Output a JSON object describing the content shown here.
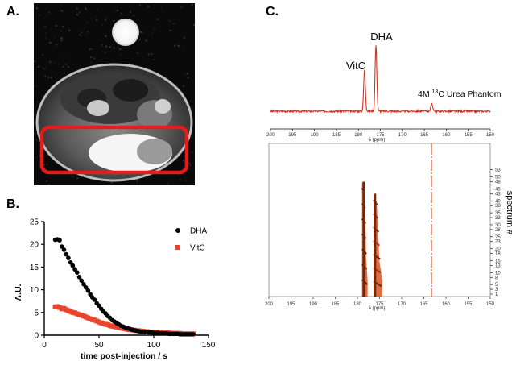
{
  "panels": {
    "a": {
      "label": "A."
    },
    "b": {
      "label": "B."
    },
    "c": {
      "label": "C."
    }
  },
  "mri": {
    "roi_color": "#e81a1a"
  },
  "chart_data": [
    {
      "type": "scatter",
      "panel": "B.",
      "xlabel": "time post-injection / s",
      "ylabel": "A.U.",
      "xlim": [
        0,
        150
      ],
      "ylim": [
        0,
        25
      ],
      "xticks": [
        "0",
        "50",
        "100",
        "150"
      ],
      "yticks": [
        "0",
        "5",
        "10",
        "15",
        "20",
        "25"
      ],
      "legend_position": "top-right",
      "series": [
        {
          "name": "DHA",
          "marker": "circle",
          "color": "#000000",
          "x": [
            10,
            12,
            14,
            16,
            18,
            20,
            22,
            24,
            26,
            28,
            30,
            32,
            34,
            36,
            38,
            40,
            42,
            44,
            46,
            48,
            50,
            52,
            54,
            56,
            58,
            60,
            62,
            64,
            66,
            68,
            70,
            72,
            74,
            76,
            78,
            80,
            82,
            84,
            86,
            88,
            90,
            92,
            94,
            96,
            98,
            100,
            102,
            104,
            106,
            108,
            110,
            112,
            114,
            116,
            118,
            120,
            122,
            124,
            126,
            128,
            130,
            132,
            134,
            136
          ],
          "y": [
            21.0,
            21.1,
            20.9,
            19.5,
            18.8,
            17.8,
            17.0,
            16.0,
            15.3,
            14.5,
            13.8,
            12.8,
            12.0,
            11.2,
            10.5,
            9.8,
            9.0,
            8.3,
            7.8,
            7.0,
            6.5,
            5.8,
            5.2,
            4.8,
            4.2,
            3.8,
            3.3,
            3.0,
            2.7,
            2.4,
            2.1,
            1.9,
            1.7,
            1.5,
            1.4,
            1.2,
            1.1,
            1.0,
            0.9,
            0.8,
            0.8,
            0.7,
            0.7,
            0.6,
            0.6,
            0.5,
            0.5,
            0.5,
            0.4,
            0.4,
            0.4,
            0.4,
            0.3,
            0.3,
            0.3,
            0.3,
            0.3,
            0.2,
            0.2,
            0.2,
            0.2,
            0.2,
            0.2,
            0.2
          ]
        },
        {
          "name": "VitC",
          "marker": "square",
          "color": "#e8452c",
          "x": [
            10,
            12,
            14,
            16,
            18,
            20,
            22,
            24,
            26,
            28,
            30,
            32,
            34,
            36,
            38,
            40,
            42,
            44,
            46,
            48,
            50,
            52,
            54,
            56,
            58,
            60,
            62,
            64,
            66,
            68,
            70,
            72,
            74,
            76,
            78,
            80,
            82,
            84,
            86,
            88,
            90,
            92,
            94,
            96,
            98,
            100,
            102,
            104,
            106,
            108,
            110,
            112,
            114,
            116,
            118,
            120,
            122,
            124,
            126,
            128,
            130,
            132,
            134,
            136
          ],
          "y": [
            6.2,
            6.3,
            6.1,
            5.8,
            5.9,
            5.6,
            5.4,
            5.2,
            5.0,
            4.9,
            4.7,
            4.5,
            4.4,
            4.2,
            4.0,
            3.8,
            3.6,
            3.4,
            3.3,
            3.1,
            2.9,
            2.7,
            2.6,
            2.4,
            2.3,
            2.1,
            2.0,
            1.9,
            1.8,
            1.7,
            1.6,
            1.5,
            1.4,
            1.3,
            1.2,
            1.2,
            1.1,
            1.0,
            1.0,
            0.9,
            0.9,
            0.8,
            0.8,
            0.7,
            0.7,
            0.7,
            0.6,
            0.6,
            0.6,
            0.5,
            0.5,
            0.5,
            0.5,
            0.4,
            0.4,
            0.4,
            0.4,
            0.4,
            0.3,
            0.3,
            0.3,
            0.3,
            0.3,
            0.3
          ]
        }
      ]
    },
    {
      "type": "line",
      "panel": "C.",
      "role": "summed-spectrum",
      "xlabel": "δ (ppm)",
      "x_reversed": true,
      "xlim": [
        200,
        150
      ],
      "xticks": [
        "200",
        "195",
        "190",
        "185",
        "180",
        "175",
        "170",
        "165",
        "160",
        "155",
        "150"
      ],
      "color": "#d2321e",
      "annotations": [
        {
          "text": "DHA",
          "x_ppm": 176.0
        },
        {
          "text": "VitC",
          "x_ppm": 178.6
        },
        {
          "text_prefix": "4M ",
          "superscript": "13",
          "text_suffix": "C Urea Phantom",
          "x_ppm": 163.3
        }
      ],
      "peaks": [
        {
          "name": "VitC",
          "ppm": 178.6,
          "height": 0.62
        },
        {
          "name": "DHA",
          "ppm": 176.0,
          "height": 1.0
        },
        {
          "name": "Urea",
          "ppm": 163.3,
          "height": 0.1
        }
      ]
    },
    {
      "type": "area",
      "panel": "C.",
      "role": "stacked-dynamic-spectra",
      "xlabel": "δ (ppm)",
      "ylabel": "spectrum #",
      "x_reversed": true,
      "xlim": [
        200,
        150
      ],
      "xticks": [
        "200",
        "195",
        "190",
        "185",
        "180",
        "175",
        "170",
        "165",
        "160",
        "155",
        "150"
      ],
      "ylim": [
        0,
        64
      ],
      "yticks": [
        "1",
        "3",
        "5",
        "8",
        "10",
        "13",
        "15",
        "18",
        "20",
        "23",
        "25",
        "28",
        "30",
        "33",
        "35",
        "38",
        "40",
        "43",
        "45",
        "48",
        "50",
        "53"
      ],
      "colors": [
        "#6e2a0e",
        "#a8361a",
        "#d9521e",
        "#f08a2e"
      ],
      "peaks": [
        {
          "name": "VitC",
          "ppm": 178.6,
          "max_spectrum": 48
        },
        {
          "name": "DHA",
          "ppm": 176.0,
          "max_spectrum": 43
        },
        {
          "name": "Urea",
          "ppm": 163.3,
          "max_spectrum": 64
        }
      ]
    }
  ]
}
